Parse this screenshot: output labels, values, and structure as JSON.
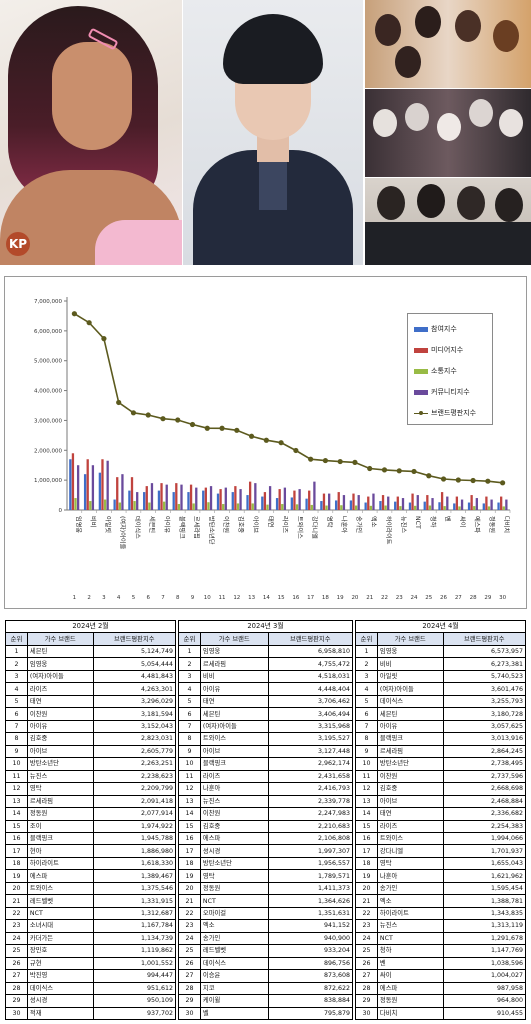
{
  "chart_data": {
    "type": "bar",
    "categories": [
      "임영웅",
      "비비",
      "아일릿",
      "(여자)아이들",
      "데이식스",
      "세븐틴",
      "아이유",
      "블랙핑크",
      "르세라핌",
      "방탄소년단",
      "이찬원",
      "김호중",
      "아이브",
      "태연",
      "라이즈",
      "트와이스",
      "강다니엘",
      "영탁",
      "나훈아",
      "송가인",
      "엑소",
      "하이라이트",
      "뉴진스",
      "NCT",
      "청하",
      "벤",
      "싸이",
      "에스파",
      "정동원",
      "다비치"
    ],
    "index_labels": [
      "1",
      "2",
      "3",
      "4",
      "5",
      "6",
      "7",
      "8",
      "9",
      "10",
      "11",
      "12",
      "13",
      "14",
      "15",
      "16",
      "17",
      "18",
      "19",
      "20",
      "21",
      "22",
      "23",
      "24",
      "25",
      "26",
      "27",
      "28",
      "29",
      "30"
    ],
    "ylim": [
      0,
      7000000
    ],
    "yticks": [
      "0",
      "1,000,000",
      "2,000,000",
      "3,000,000",
      "4,000,000",
      "5,000,000",
      "6,000,000",
      "7,000,000"
    ],
    "ytick_values": [
      0,
      1000000,
      2000000,
      3000000,
      4000000,
      5000000,
      6000000,
      7000000
    ],
    "legend_placement": "right",
    "grid": false,
    "series": [
      {
        "name": "참여지수",
        "kind": "bar",
        "color": "#3f6ec8",
        "values": [
          1700000,
          1200000,
          1250000,
          350000,
          650000,
          600000,
          650000,
          600000,
          600000,
          650000,
          550000,
          600000,
          500000,
          450000,
          400000,
          420000,
          380000,
          300000,
          320000,
          320000,
          250000,
          300000,
          280000,
          250000,
          280000,
          260000,
          220000,
          250000,
          220000,
          250000
        ]
      },
      {
        "name": "미디어지수",
        "kind": "bar",
        "color": "#c0433e",
        "values": [
          1900000,
          1700000,
          1700000,
          1100000,
          1100000,
          800000,
          900000,
          900000,
          850000,
          750000,
          700000,
          800000,
          950000,
          600000,
          700000,
          650000,
          650000,
          550000,
          600000,
          550000,
          450000,
          500000,
          450000,
          550000,
          500000,
          600000,
          450000,
          500000,
          450000,
          450000
        ]
      },
      {
        "name": "소통지수",
        "kind": "bar",
        "color": "#98bb45",
        "values": [
          400000,
          300000,
          350000,
          250000,
          300000,
          250000,
          280000,
          200000,
          220000,
          260000,
          200000,
          220000,
          220000,
          180000,
          200000,
          190000,
          170000,
          150000,
          160000,
          150000,
          140000,
          150000,
          130000,
          140000,
          150000,
          130000,
          120000,
          130000,
          120000,
          120000
        ]
      },
      {
        "name": "커뮤니티지수",
        "kind": "bar",
        "color": "#6a4a9c",
        "values": [
          1500000,
          1500000,
          1650000,
          1200000,
          600000,
          900000,
          850000,
          850000,
          750000,
          800000,
          750000,
          700000,
          900000,
          800000,
          750000,
          700000,
          950000,
          550000,
          500000,
          500000,
          550000,
          450000,
          400000,
          500000,
          400000,
          450000,
          350000,
          400000,
          350000,
          350000
        ]
      },
      {
        "name": "브랜드평판지수",
        "kind": "line",
        "color": "#5c5a1e",
        "values": [
          6573957,
          6273381,
          5740523,
          3601476,
          3255793,
          3180728,
          3057625,
          3013916,
          2864245,
          2738495,
          2737596,
          2668698,
          2468884,
          2336682,
          2254383,
          1994066,
          1701937,
          1655043,
          1621962,
          1595454,
          1388781,
          1343835,
          1313119,
          1291678,
          1147769,
          1038596,
          1004027,
          987958,
          964800,
          910455
        ]
      }
    ]
  },
  "tables": [
    {
      "month": "2024년 2월",
      "headers": [
        "순위",
        "가수 브랜드",
        "브랜드평판지수"
      ],
      "rows": [
        [
          "1",
          "세븐틴",
          "5,124,749"
        ],
        [
          "2",
          "임영웅",
          "5,054,444"
        ],
        [
          "3",
          "(여자)아이들",
          "4,481,843"
        ],
        [
          "4",
          "라이즈",
          "4,263,301"
        ],
        [
          "5",
          "태연",
          "3,296,029"
        ],
        [
          "6",
          "이찬원",
          "3,181,594"
        ],
        [
          "7",
          "아이유",
          "3,152,043"
        ],
        [
          "8",
          "김호중",
          "2,823,031"
        ],
        [
          "9",
          "아이브",
          "2,605,779"
        ],
        [
          "10",
          "방탄소년단",
          "2,263,251"
        ],
        [
          "11",
          "뉴진스",
          "2,238,623"
        ],
        [
          "12",
          "영탁",
          "2,209,799"
        ],
        [
          "13",
          "르세라핌",
          "2,091,418"
        ],
        [
          "14",
          "정동원",
          "2,077,914"
        ],
        [
          "15",
          "조이",
          "1,974,922"
        ],
        [
          "16",
          "블랙핑크",
          "1,945,788"
        ],
        [
          "17",
          "현아",
          "1,886,980"
        ],
        [
          "18",
          "하이라이트",
          "1,618,330"
        ],
        [
          "19",
          "에스파",
          "1,389,467"
        ],
        [
          "20",
          "트와이스",
          "1,375,546"
        ],
        [
          "21",
          "레드벨벳",
          "1,331,915"
        ],
        [
          "22",
          "NCT",
          "1,312,687"
        ],
        [
          "23",
          "소녀시대",
          "1,167,784"
        ],
        [
          "24",
          "카더가든",
          "1,134,739"
        ],
        [
          "25",
          "장민호",
          "1,119,862"
        ],
        [
          "26",
          "규현",
          "1,001,552"
        ],
        [
          "27",
          "박진영",
          "994,447"
        ],
        [
          "28",
          "데이식스",
          "951,612"
        ],
        [
          "29",
          "성시경",
          "950,109"
        ],
        [
          "30",
          "적재",
          "937,702"
        ]
      ]
    },
    {
      "month": "2024년 3월",
      "headers": [
        "순위",
        "가수 브랜드",
        "브랜드평판지수"
      ],
      "rows": [
        [
          "1",
          "임영웅",
          "6,958,810"
        ],
        [
          "2",
          "르세라핌",
          "4,755,472"
        ],
        [
          "3",
          "비비",
          "4,518,031"
        ],
        [
          "4",
          "아이유",
          "4,448,404"
        ],
        [
          "5",
          "태연",
          "3,706,462"
        ],
        [
          "6",
          "세븐틴",
          "3,406,494"
        ],
        [
          "7",
          "(여자)아이들",
          "3,315,968"
        ],
        [
          "8",
          "트와이스",
          "3,195,527"
        ],
        [
          "9",
          "아이브",
          "3,127,448"
        ],
        [
          "10",
          "블랙핑크",
          "2,962,174"
        ],
        [
          "11",
          "라이즈",
          "2,431,658"
        ],
        [
          "12",
          "나훈아",
          "2,416,793"
        ],
        [
          "13",
          "뉴진스",
          "2,339,778"
        ],
        [
          "14",
          "이찬원",
          "2,247,983"
        ],
        [
          "15",
          "김호중",
          "2,210,683"
        ],
        [
          "16",
          "에스파",
          "2,106,808"
        ],
        [
          "17",
          "성시경",
          "1,997,307"
        ],
        [
          "18",
          "방탄소년단",
          "1,956,557"
        ],
        [
          "19",
          "영탁",
          "1,789,571"
        ],
        [
          "20",
          "정동원",
          "1,411,373"
        ],
        [
          "21",
          "NCT",
          "1,364,626"
        ],
        [
          "22",
          "오마이걸",
          "1,351,631"
        ],
        [
          "23",
          "엑소",
          "941,152"
        ],
        [
          "24",
          "송가인",
          "940,900"
        ],
        [
          "25",
          "레드벨벳",
          "933,204"
        ],
        [
          "26",
          "데이식스",
          "896,756"
        ],
        [
          "27",
          "이승윤",
          "873,608"
        ],
        [
          "28",
          "지코",
          "872,622"
        ],
        [
          "29",
          "케이윌",
          "838,884"
        ],
        [
          "30",
          "벨",
          "795,879"
        ]
      ]
    },
    {
      "month": "2024년 4월",
      "headers": [
        "순위",
        "가수 브랜드",
        "브랜드평판지수"
      ],
      "rows": [
        [
          "1",
          "임영웅",
          "6,573,957"
        ],
        [
          "2",
          "비비",
          "6,273,381"
        ],
        [
          "3",
          "아일릿",
          "5,740,523"
        ],
        [
          "4",
          "(여자)아이들",
          "3,601,476"
        ],
        [
          "5",
          "데이식스",
          "3,255,793"
        ],
        [
          "6",
          "세븐틴",
          "3,180,728"
        ],
        [
          "7",
          "아이유",
          "3,057,625"
        ],
        [
          "8",
          "블랙핑크",
          "3,013,916"
        ],
        [
          "9",
          "르세라핌",
          "2,864,245"
        ],
        [
          "10",
          "방탄소년단",
          "2,738,495"
        ],
        [
          "11",
          "이찬원",
          "2,737,596"
        ],
        [
          "12",
          "김호중",
          "2,668,698"
        ],
        [
          "13",
          "아이브",
          "2,468,884"
        ],
        [
          "14",
          "태연",
          "2,336,682"
        ],
        [
          "15",
          "라이즈",
          "2,254,383"
        ],
        [
          "16",
          "트와이스",
          "1,994,066"
        ],
        [
          "17",
          "강다니엘",
          "1,701,937"
        ],
        [
          "18",
          "영탁",
          "1,655,043"
        ],
        [
          "19",
          "나훈아",
          "1,621,962"
        ],
        [
          "20",
          "송가인",
          "1,595,454"
        ],
        [
          "21",
          "엑소",
          "1,388,781"
        ],
        [
          "22",
          "하이라이트",
          "1,343,835"
        ],
        [
          "23",
          "뉴진스",
          "1,313,119"
        ],
        [
          "24",
          "NCT",
          "1,291,678"
        ],
        [
          "25",
          "청하",
          "1,147,769"
        ],
        [
          "26",
          "벤",
          "1,038,596"
        ],
        [
          "27",
          "싸이",
          "1,004,027"
        ],
        [
          "28",
          "에스파",
          "987,958"
        ],
        [
          "29",
          "정동원",
          "964,800"
        ],
        [
          "30",
          "다비치",
          "910,455"
        ]
      ]
    }
  ],
  "photos": {
    "watermark": "KP"
  }
}
